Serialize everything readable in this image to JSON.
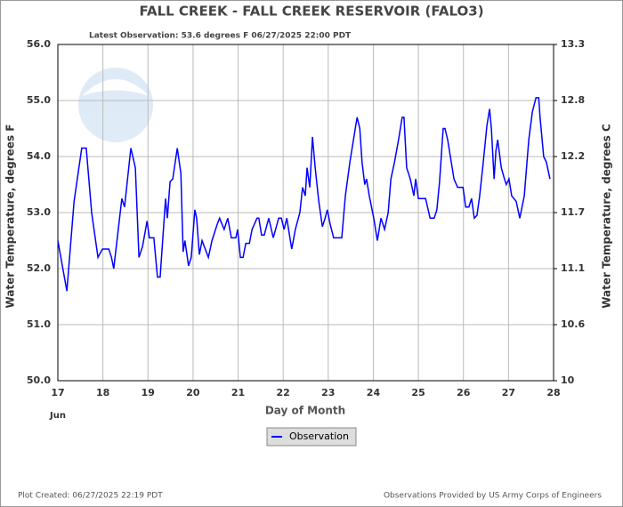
{
  "chart_data": {
    "type": "line",
    "title": "FALL CREEK - FALL CREEK RESERVOIR  (FALO3)",
    "subtitle": "Latest Observation: 53.6 degrees F 06/27/2025 22:00 PDT",
    "xlabel": "Day of Month",
    "ylabel": "Water Temperature, degrees F",
    "y2label": "Water Temperature, degrees C",
    "month_label": "Jun",
    "footer_left": "Plot Created: 06/27/2025 22:19 PDT",
    "footer_right": "Observations Provided by US Army Corps of Engineers",
    "grid": true,
    "xlim": [
      17,
      28
    ],
    "xticks": [
      17,
      18,
      19,
      20,
      21,
      22,
      23,
      24,
      25,
      26,
      27,
      28
    ],
    "ylim": [
      50,
      56
    ],
    "yticks": [
      {
        "value": 50,
        "label": "50.0"
      },
      {
        "value": 51,
        "label": "51.0"
      },
      {
        "value": 52,
        "label": "52.0"
      },
      {
        "value": 53,
        "label": "53.0"
      },
      {
        "value": 54,
        "label": "54.0"
      },
      {
        "value": 55,
        "label": "55.0"
      },
      {
        "value": 56,
        "label": "56.0"
      }
    ],
    "y2lim": [
      10,
      13.3333
    ],
    "y2ticks": [
      10,
      {
        "value": 10.5556,
        "label": "10.6"
      },
      {
        "value": 11.1111,
        "label": "11.1"
      },
      {
        "value": 11.6667,
        "label": "11.7"
      },
      {
        "value": 12.2222,
        "label": "12.2"
      },
      {
        "value": 12.7778,
        "label": "12.8"
      },
      {
        "value": 13.3333,
        "label": "13.3"
      }
    ],
    "x": [
      17.0,
      17.2,
      17.36,
      17.53,
      17.63,
      17.75,
      17.89,
      17.99,
      18.13,
      18.19,
      18.24,
      18.42,
      18.48,
      18.62,
      18.72,
      18.8,
      18.88,
      18.98,
      19.03,
      19.13,
      19.21,
      19.27,
      19.39,
      19.43,
      19.49,
      19.55,
      19.65,
      19.73,
      19.78,
      19.82,
      19.9,
      19.96,
      20.04,
      20.08,
      20.14,
      20.2,
      20.34,
      20.42,
      20.54,
      20.59,
      20.69,
      20.77,
      20.85,
      20.95,
      20.99,
      21.05,
      21.11,
      21.17,
      21.25,
      21.31,
      21.42,
      21.46,
      21.52,
      21.58,
      21.68,
      21.78,
      21.9,
      21.96,
      22.02,
      22.08,
      22.14,
      22.19,
      22.27,
      22.37,
      22.43,
      22.49,
      22.53,
      22.59,
      22.65,
      22.71,
      22.79,
      22.87,
      22.93,
      22.98,
      23.04,
      23.12,
      23.3,
      23.38,
      23.48,
      23.56,
      23.64,
      23.7,
      23.75,
      23.81,
      23.85,
      23.91,
      24.01,
      24.09,
      24.17,
      24.25,
      24.33,
      24.39,
      24.47,
      24.56,
      24.64,
      24.68,
      24.74,
      24.82,
      24.86,
      24.9,
      24.94,
      25.0,
      25.16,
      25.26,
      25.35,
      25.41,
      25.47,
      25.55,
      25.59,
      25.65,
      25.75,
      25.79,
      25.87,
      25.99,
      26.05,
      26.12,
      26.18,
      26.24,
      26.3,
      26.36,
      26.44,
      26.52,
      26.58,
      26.62,
      26.68,
      26.72,
      26.76,
      26.84,
      26.91,
      26.95,
      27.01,
      27.07,
      27.17,
      27.25,
      27.35,
      27.45,
      27.53,
      27.61,
      27.67,
      27.7,
      27.78,
      27.84,
      27.92
    ],
    "series": [
      {
        "name": "Observation",
        "color": "#0000ff",
        "values": [
          52.5,
          51.6,
          53.2,
          54.15,
          54.15,
          53.0,
          52.2,
          52.35,
          52.35,
          52.2,
          52.0,
          53.25,
          53.1,
          54.15,
          53.8,
          52.2,
          52.4,
          52.85,
          52.55,
          52.55,
          51.85,
          51.85,
          53.25,
          52.9,
          53.55,
          53.6,
          54.15,
          53.7,
          52.3,
          52.5,
          52.05,
          52.2,
          53.05,
          52.9,
          52.25,
          52.5,
          52.2,
          52.5,
          52.8,
          52.9,
          52.7,
          52.9,
          52.55,
          52.55,
          52.7,
          52.2,
          52.2,
          52.45,
          52.45,
          52.7,
          52.9,
          52.9,
          52.6,
          52.6,
          52.9,
          52.55,
          52.9,
          52.9,
          52.7,
          52.9,
          52.6,
          52.35,
          52.7,
          53.0,
          53.45,
          53.3,
          53.8,
          53.45,
          54.35,
          53.8,
          53.2,
          52.75,
          52.9,
          53.05,
          52.8,
          52.55,
          52.55,
          53.3,
          53.9,
          54.3,
          54.7,
          54.5,
          53.9,
          53.5,
          53.6,
          53.3,
          52.9,
          52.5,
          52.9,
          52.7,
          53.0,
          53.6,
          53.9,
          54.3,
          54.7,
          54.7,
          53.8,
          53.6,
          53.45,
          53.3,
          53.6,
          53.25,
          53.25,
          52.9,
          52.9,
          53.05,
          53.55,
          54.5,
          54.5,
          54.3,
          53.8,
          53.6,
          53.45,
          53.45,
          53.1,
          53.1,
          53.25,
          52.9,
          52.95,
          53.3,
          53.9,
          54.55,
          54.85,
          54.5,
          53.6,
          54.1,
          54.3,
          53.8,
          53.6,
          53.5,
          53.6,
          53.3,
          53.2,
          52.9,
          53.3,
          54.3,
          54.8,
          55.05,
          55.05,
          54.7,
          54.0,
          53.9,
          53.6
        ]
      }
    ]
  }
}
